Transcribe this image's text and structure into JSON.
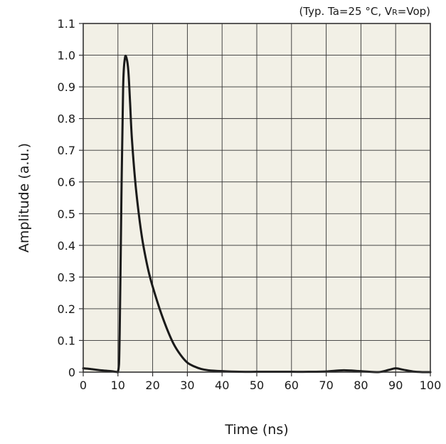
{
  "chart_data": {
    "type": "line",
    "title": "",
    "annotation": "(Typ. Ta=25 °C, V",
    "annotation_subscript": "R",
    "annotation_tail": "=Vop)",
    "xlabel": "Time (ns)",
    "ylabel": "Amplitude (a.u.)",
    "xlim": [
      0,
      100
    ],
    "ylim": [
      0,
      1.1
    ],
    "xticks": [
      "0",
      "10",
      "20",
      "30",
      "40",
      "50",
      "60",
      "70",
      "80",
      "90",
      "100"
    ],
    "yticks": [
      "0",
      "0.1",
      "0.2",
      "0.3",
      "0.4",
      "0.5",
      "0.6",
      "0.7",
      "0.8",
      "0.9",
      "1.0",
      "1.1"
    ],
    "grid": true,
    "colors": {
      "plot_background": "#f2f0e6",
      "grid": "#333333",
      "line": "#1a1a1a"
    },
    "series": [
      {
        "x": [
          0,
          2,
          5,
          8,
          10,
          10.5,
          11,
          11.5,
          12,
          12.5,
          13,
          13.5,
          14,
          15,
          16,
          17,
          18,
          19,
          20,
          22,
          24,
          26,
          28,
          30,
          32,
          34,
          36,
          40,
          45,
          50,
          55,
          60,
          65,
          70,
          75,
          80,
          85,
          88,
          90,
          92,
          95,
          98,
          100
        ],
        "y": [
          0.012,
          0.01,
          0.006,
          0.003,
          0.0,
          0.12,
          0.55,
          0.9,
          0.99,
          0.99,
          0.95,
          0.85,
          0.74,
          0.6,
          0.5,
          0.42,
          0.36,
          0.31,
          0.27,
          0.2,
          0.14,
          0.09,
          0.055,
          0.03,
          0.018,
          0.01,
          0.006,
          0.003,
          0.001,
          0.001,
          0.001,
          0.001,
          0.001,
          0.002,
          0.006,
          0.003,
          0.0,
          0.007,
          0.012,
          0.008,
          0.002,
          0.0,
          0.0
        ]
      }
    ]
  }
}
